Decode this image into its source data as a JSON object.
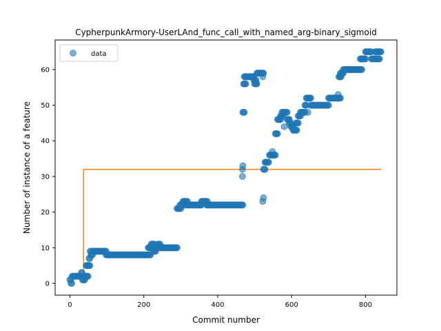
{
  "chart_data": {
    "type": "scatter",
    "title": "CypherpunkArmory-UserLAnd_func_call_with_named_arg-binary_sigmoid",
    "xlabel": "Commit number",
    "ylabel": "Number of instance of a feature",
    "xlim": [
      -40,
      885
    ],
    "ylim": [
      -3.3,
      68.3
    ],
    "xticks": [
      0,
      200,
      400,
      600,
      800
    ],
    "yticks": [
      0,
      10,
      20,
      30,
      40,
      50,
      60
    ],
    "grid": false,
    "legend": {
      "location": "top-left",
      "entries": [
        "data"
      ]
    },
    "colors": {
      "data": "#1f77b4",
      "fit": "#ff7f0e"
    },
    "series": [
      {
        "name": "data",
        "kind": "scatter",
        "segments": [
          {
            "x0": 0,
            "x1": 2,
            "y": 1
          },
          {
            "x0": 3,
            "x1": 5,
            "y": 0
          },
          {
            "x0": 6,
            "x1": 30,
            "y": 2
          },
          {
            "x0": 31,
            "x1": 33,
            "y": 3
          },
          {
            "x0": 34,
            "x1": 40,
            "y": 1
          },
          {
            "x0": 41,
            "x1": 50,
            "y": 2
          },
          {
            "x0": 44,
            "x1": 55,
            "y": 5
          },
          {
            "x0": 52,
            "x1": 55,
            "y": 7
          },
          {
            "x0": 55,
            "x1": 58,
            "y": 9
          },
          {
            "x0": 57,
            "x1": 62,
            "y": 8
          },
          {
            "x0": 62,
            "x1": 98,
            "y": 9
          },
          {
            "x0": 98,
            "x1": 218,
            "y": 8
          },
          {
            "x0": 212,
            "x1": 224,
            "y": 10
          },
          {
            "x0": 220,
            "x1": 228,
            "y": 11
          },
          {
            "x0": 226,
            "x1": 232,
            "y": 9
          },
          {
            "x0": 232,
            "x1": 238,
            "y": 10
          },
          {
            "x0": 238,
            "x1": 244,
            "y": 11
          },
          {
            "x0": 244,
            "x1": 290,
            "y": 10
          },
          {
            "x0": 290,
            "x1": 300,
            "y": 21
          },
          {
            "x0": 298,
            "x1": 310,
            "y": 22
          },
          {
            "x0": 306,
            "x1": 318,
            "y": 23
          },
          {
            "x0": 316,
            "x1": 356,
            "y": 22
          },
          {
            "x0": 356,
            "x1": 372,
            "y": 23
          },
          {
            "x0": 370,
            "x1": 468,
            "y": 22
          },
          {
            "x0": 468,
            "x1": 472,
            "y": 48
          },
          {
            "x0": 470,
            "x1": 476,
            "y": 56
          },
          {
            "x0": 472,
            "x1": 498,
            "y": 58
          },
          {
            "x0": 498,
            "x1": 505,
            "y": 57
          },
          {
            "x0": 500,
            "x1": 506,
            "y": 56
          },
          {
            "x0": 506,
            "x1": 524,
            "y": 59
          },
          {
            "x0": 524,
            "x1": 528,
            "y": 32
          },
          {
            "x0": 528,
            "x1": 538,
            "y": 34
          },
          {
            "x0": 540,
            "x1": 556,
            "y": 36
          },
          {
            "x0": 556,
            "x1": 562,
            "y": 42
          },
          {
            "x0": 562,
            "x1": 570,
            "y": 46
          },
          {
            "x0": 570,
            "x1": 576,
            "y": 47
          },
          {
            "x0": 574,
            "x1": 588,
            "y": 48
          },
          {
            "x0": 588,
            "x1": 594,
            "y": 46
          },
          {
            "x0": 594,
            "x1": 598,
            "y": 45
          },
          {
            "x0": 598,
            "x1": 604,
            "y": 44
          },
          {
            "x0": 604,
            "x1": 614,
            "y": 43
          },
          {
            "x0": 612,
            "x1": 618,
            "y": 45
          },
          {
            "x0": 618,
            "x1": 624,
            "y": 47
          },
          {
            "x0": 624,
            "x1": 636,
            "y": 48
          },
          {
            "x0": 636,
            "x1": 640,
            "y": 50
          },
          {
            "x0": 640,
            "x1": 652,
            "y": 52
          },
          {
            "x0": 652,
            "x1": 700,
            "y": 50
          },
          {
            "x0": 700,
            "x1": 732,
            "y": 52
          },
          {
            "x0": 728,
            "x1": 734,
            "y": 58
          },
          {
            "x0": 732,
            "x1": 740,
            "y": 59
          },
          {
            "x0": 740,
            "x1": 790,
            "y": 60
          },
          {
            "x0": 786,
            "x1": 800,
            "y": 63
          },
          {
            "x0": 800,
            "x1": 816,
            "y": 65
          },
          {
            "x0": 816,
            "x1": 838,
            "y": 63
          },
          {
            "x0": 826,
            "x1": 843,
            "y": 65
          }
        ],
        "points": [
          {
            "x": 467,
            "y": 30
          },
          {
            "x": 467,
            "y": 32
          },
          {
            "x": 468,
            "y": 33
          },
          {
            "x": 522,
            "y": 23
          },
          {
            "x": 524,
            "y": 24
          },
          {
            "x": 522,
            "y": 58
          },
          {
            "x": 548,
            "y": 37
          },
          {
            "x": 580,
            "y": 44
          },
          {
            "x": 644,
            "y": 48
          },
          {
            "x": 726,
            "y": 53
          },
          {
            "x": 750,
            "y": 60
          }
        ]
      },
      {
        "name": "",
        "kind": "step",
        "points": [
          {
            "x": 0,
            "y": 2
          },
          {
            "x": 37,
            "y": 2
          },
          {
            "x": 37,
            "y": 32
          },
          {
            "x": 843,
            "y": 32
          }
        ]
      }
    ]
  }
}
